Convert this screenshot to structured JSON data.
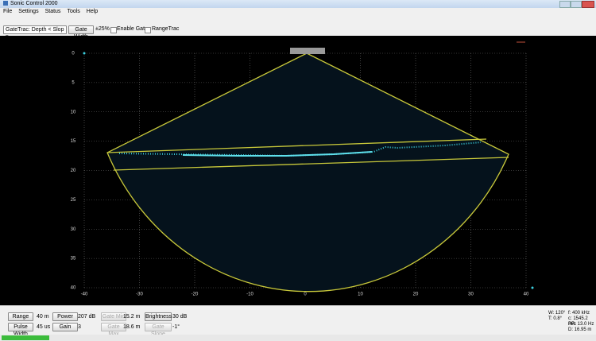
{
  "window": {
    "title": "Sonic Control 2000"
  },
  "menu": [
    "File",
    "Settings",
    "Status",
    "Tools",
    "Help"
  ],
  "toolbar": {
    "gatetrac": "GateTrac: Depth < Slop",
    "gate_width_button": "Gate Width",
    "gate_width_value": "±25%",
    "enable_gates": "Enable Gates",
    "rangetrac": "RangeTrac"
  },
  "plot": {
    "xticks": [
      -40,
      -30,
      -20,
      -10,
      0,
      10,
      20,
      30,
      40
    ],
    "yticks": [
      0,
      5,
      10,
      15,
      20,
      25,
      30,
      35,
      40
    ]
  },
  "controls": [
    {
      "button": "Range",
      "value": "40 m"
    },
    {
      "button": "Power",
      "value": "207 dB"
    },
    {
      "button": "Gate Min",
      "value": "15.2 m"
    },
    {
      "button": "Brightness",
      "value": "30 dB"
    },
    {
      "button": "Pulse Width",
      "value": "45 us"
    },
    {
      "button": "Gain",
      "value": "3"
    },
    {
      "button": "Gate Max",
      "value": "18.6 m"
    },
    {
      "button": "Gate Slope",
      "value": "-1°"
    }
  ],
  "readouts": [
    "W: 120°",
    "f: 400 kHz",
    "T: 0.8°",
    "c: 1545.2 m/s",
    "PR: 13.0 Hz",
    "D: 16.95 m"
  ]
}
